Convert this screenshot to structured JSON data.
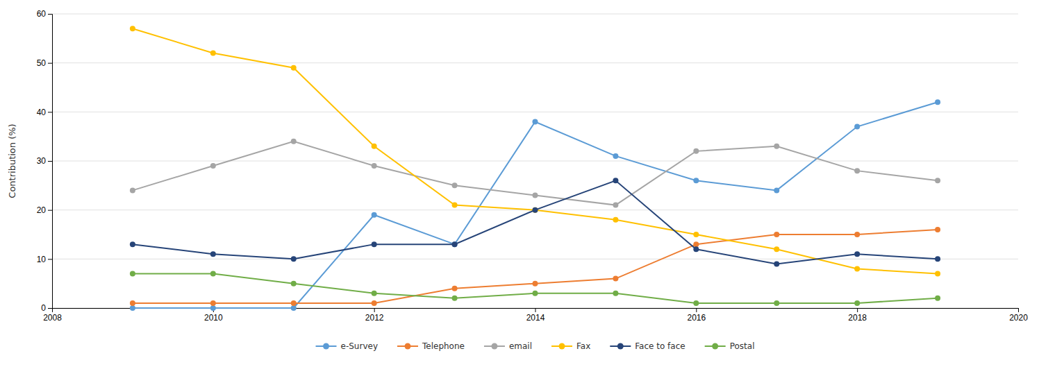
{
  "chart_data": {
    "type": "line",
    "y_label": "Contribution (%)",
    "x": [
      2009,
      2010,
      2011,
      2012,
      2013,
      2014,
      2015,
      2016,
      2017,
      2018,
      2019
    ],
    "series": [
      {
        "name": "e-Survey",
        "color": "#5B9BD5",
        "marker": "circle",
        "values": [
          0,
          0,
          0,
          19,
          13,
          38,
          31,
          26,
          24,
          37,
          42
        ]
      },
      {
        "name": "Telephone",
        "color": "#ED7D31",
        "marker": "circle",
        "values": [
          1,
          1,
          1,
          1,
          4,
          5,
          6,
          13,
          15,
          15,
          16
        ]
      },
      {
        "name": "email",
        "color": "#A5A5A5",
        "marker": "circle",
        "values": [
          24,
          29,
          34,
          29,
          25,
          23,
          21,
          32,
          33,
          28,
          26
        ]
      },
      {
        "name": "Fax",
        "color": "#FFC000",
        "marker": "circle",
        "values": [
          57,
          52,
          49,
          33,
          21,
          20,
          18,
          15,
          12,
          8,
          7
        ]
      },
      {
        "name": "Face to face",
        "color": "#264478",
        "marker": "circle",
        "values": [
          13,
          11,
          10,
          13,
          13,
          20,
          26,
          12,
          9,
          11,
          10
        ]
      },
      {
        "name": "Postal",
        "color": "#70AD47",
        "marker": "circle",
        "values": [
          7,
          7,
          5,
          3,
          2,
          3,
          3,
          1,
          1,
          1,
          2
        ]
      }
    ],
    "xlim": [
      2008,
      2020
    ],
    "xticks": [
      2008,
      2010,
      2012,
      2014,
      2016,
      2018,
      2020
    ],
    "ylim": [
      0,
      60
    ],
    "yticks": [
      0,
      10,
      20,
      30,
      40,
      50,
      60
    ],
    "grid": true,
    "legend": "bottom"
  }
}
